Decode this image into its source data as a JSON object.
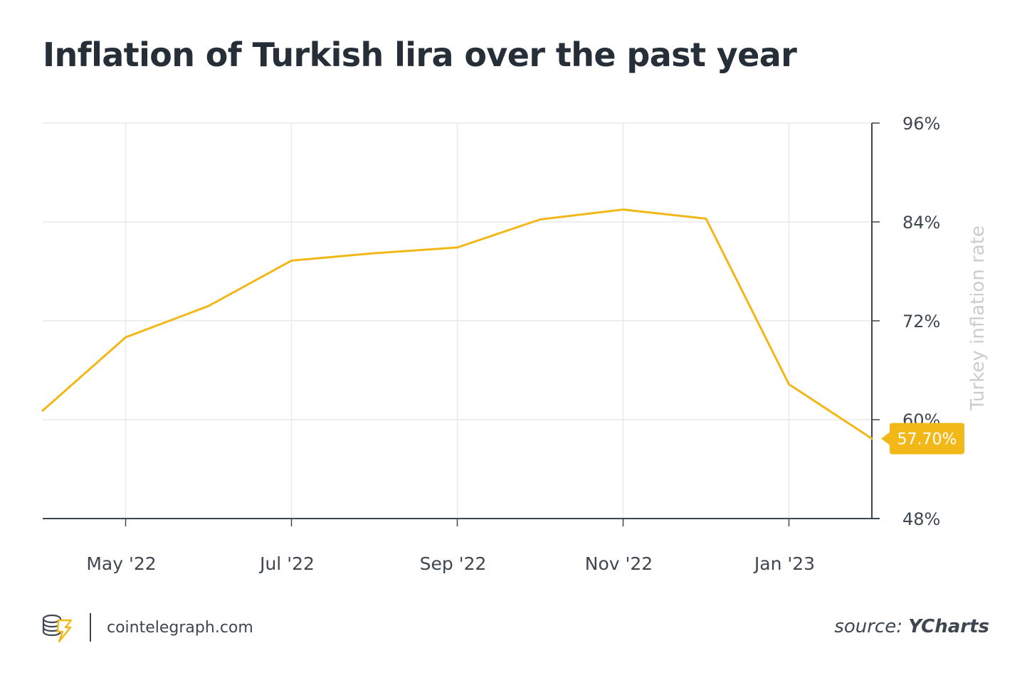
{
  "title": "Inflation of Turkish lira over the past year",
  "footer": {
    "site": "cointelegraph.com",
    "source_label": "source:",
    "source_name": "YCharts"
  },
  "colors": {
    "line": "#f2b817",
    "badge": "#f2b817",
    "grid": "#e8e9eb",
    "axis": "#3e4650"
  },
  "chart_data": {
    "type": "line",
    "title": "Inflation of Turkish lira over the past year",
    "ylabel": "Turkey inflation rate",
    "ylim": [
      48,
      96
    ],
    "yticks": [
      "96%",
      "84%",
      "72%",
      "60%",
      "48%"
    ],
    "ytick_values": [
      96,
      84,
      72,
      60,
      48
    ],
    "xticks": [
      "May '22",
      "Jul '22",
      "Sep '22",
      "Nov '22",
      "Jan '23"
    ],
    "x": [
      "Apr '22",
      "May '22",
      "Jun '22",
      "Jul '22",
      "Aug '22",
      "Sep '22",
      "Oct '22",
      "Nov '22",
      "Dec '22",
      "Jan '23",
      "Feb '23"
    ],
    "series": [
      {
        "values": [
          61.1,
          70.0,
          73.8,
          79.3,
          80.2,
          80.9,
          84.3,
          85.5,
          84.4,
          64.3,
          57.7
        ]
      }
    ],
    "last_value_label": "57.70%",
    "grid": true,
    "y_axis_position": "right"
  }
}
